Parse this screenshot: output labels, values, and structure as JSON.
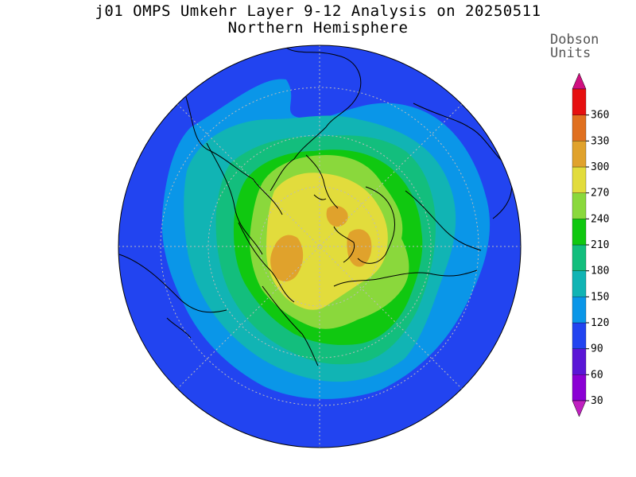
{
  "title": "j01 OMPS Umkehr Layer 9-12 Analysis on 20250511",
  "subtitle": "Northern Hemisphere",
  "colorbar": {
    "unit_line1": "Dobson",
    "unit_line2": "Units",
    "levels": [
      30,
      60,
      90,
      120,
      150,
      180,
      210,
      240,
      270,
      300,
      330,
      360
    ],
    "colors": [
      "#8a00d4",
      "#5a16d6",
      "#2244f0",
      "#0a96e8",
      "#11b4b4",
      "#13be7d",
      "#10c810",
      "#8ad83c",
      "#e2dc3c",
      "#e0a22c",
      "#e07020",
      "#e61010"
    ],
    "under_color": "#c020c0",
    "over_color": "#d01080",
    "tick_labels": [
      "30",
      "60",
      "90",
      "120",
      "150",
      "180",
      "210",
      "240",
      "270",
      "300",
      "330",
      "360"
    ]
  },
  "map": {
    "projection": "north-polar-stereographic",
    "background_color": "#2244f0"
  }
}
